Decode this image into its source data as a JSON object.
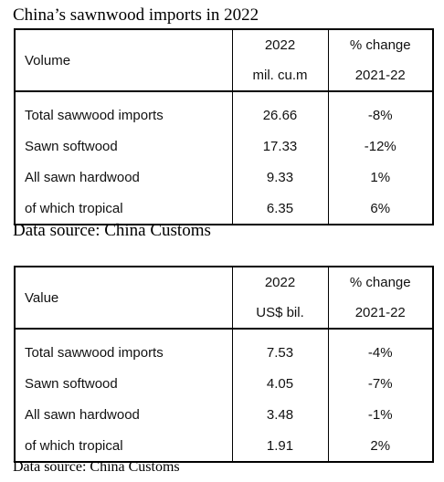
{
  "title": "China’s sawnwood imports in 2022",
  "tables": [
    {
      "header": {
        "label": "Volume",
        "year": [
          "2022",
          "mil. cu.m"
        ],
        "change": [
          "% change",
          "2021-22"
        ]
      },
      "rows": [
        [
          "Total sawwood imports",
          "26.66",
          "-8%"
        ],
        [
          "Sawn softwood",
          "17.33",
          "-12%"
        ],
        [
          "All sawn hardwood",
          "9.33",
          "1%"
        ],
        [
          "of which tropical",
          "6.35",
          "6%"
        ]
      ],
      "source": "Data source: China Customs"
    },
    {
      "header": {
        "label": "Value",
        "year": [
          "2022",
          "US$ bil."
        ],
        "change": [
          "% change",
          "2021-22"
        ]
      },
      "rows": [
        [
          "Total sawwood imports",
          "7.53",
          "-4%"
        ],
        [
          "Sawn softwood",
          "4.05",
          "-7%"
        ],
        [
          "All sawn hardwood",
          "3.48",
          "-1%"
        ],
        [
          "of which tropical",
          "1.91",
          "2%"
        ]
      ],
      "source": "Data source: China Customs"
    }
  ]
}
